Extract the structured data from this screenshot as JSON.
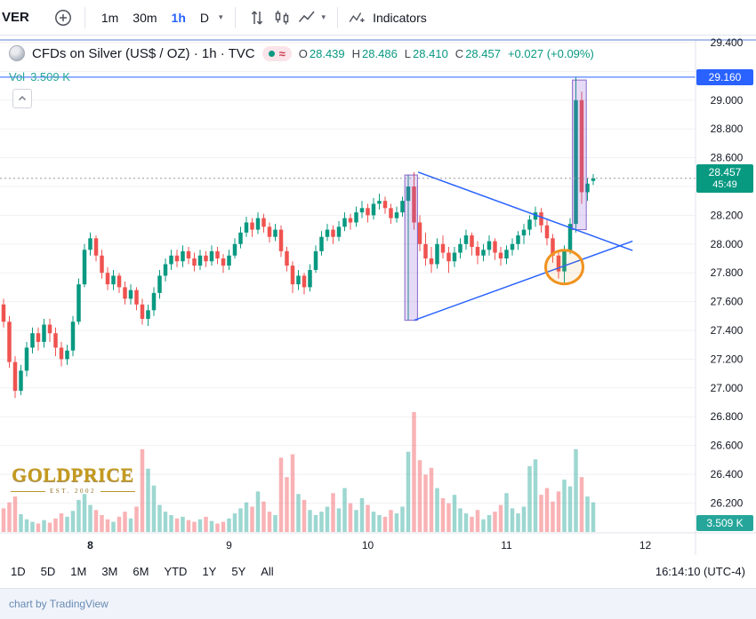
{
  "toolbar": {
    "symbol_short": "VER",
    "intervals": [
      {
        "label": "1m",
        "active": false
      },
      {
        "label": "30m",
        "active": false
      },
      {
        "label": "1h",
        "active": true
      },
      {
        "label": "D",
        "active": false
      }
    ],
    "indicators_label": "Indicators"
  },
  "header": {
    "title": "CFDs on Silver (US$ / OZ) · 1h · TVC",
    "status_approx": "≈",
    "ohlc": {
      "o_label": "O",
      "o": "28.439",
      "h_label": "H",
      "h": "28.486",
      "l_label": "L",
      "l": "28.410",
      "c_label": "C",
      "c": "28.457",
      "change": "+0.027 (+0.09%)"
    },
    "volume_label": "Vol",
    "volume_value": "3.509 K"
  },
  "axis": {
    "price_labels": [
      "29.400",
      "29.000",
      "28.800",
      "28.600",
      "28.200",
      "28.000",
      "27.800",
      "27.600",
      "27.400",
      "27.200",
      "27.000",
      "26.800",
      "26.600",
      "26.400",
      "26.200"
    ],
    "price_line_badge": "29.160",
    "last_price_badge": "28.457",
    "countdown": "45:49",
    "volume_badge": "3.509 K"
  },
  "ranges": [
    "1D",
    "5D",
    "1M",
    "3M",
    "6M",
    "YTD",
    "1Y",
    "5Y",
    "All"
  ],
  "clock": "16:14:10 (UTC-4)",
  "footer_text": "chart by TradingView",
  "watermark": {
    "line1": "GOLDPRICE",
    "line2": "EST. 2002"
  },
  "colors": {
    "accent_blue": "#2962ff",
    "up": "#089981",
    "down": "#ef5350",
    "vol_up": "rgba(38,166,154,0.45)",
    "vol_down": "rgba(242,84,91,0.45)",
    "box_fill": "rgba(142,91,212,0.22)",
    "box_stroke": "rgba(103,58,183,0.75)",
    "triangle": "#2962ff",
    "circle": "#f0931f",
    "grid": "#f0f1f4",
    "axis_text": "#131722",
    "dotted": "#9598a1",
    "top_border": "#5b7fd9",
    "axis_line": "#e0e3eb"
  },
  "chart_data": {
    "type": "candlestick",
    "symbol": "CFDs on Silver (US$ / OZ)",
    "interval": "1h",
    "visible_price_range": [
      26.1,
      29.45
    ],
    "grid_step": 0.2,
    "last_price": 28.457,
    "last_volume_k": 3.509,
    "vol_max_k": 14.2,
    "candles_ohlc": [
      [
        27.58,
        27.62,
        27.42,
        27.46
      ],
      [
        27.46,
        27.5,
        27.14,
        27.18
      ],
      [
        27.18,
        27.22,
        26.93,
        26.98
      ],
      [
        26.98,
        27.16,
        26.95,
        27.12
      ],
      [
        27.12,
        27.32,
        27.08,
        27.28
      ],
      [
        27.28,
        27.42,
        27.24,
        27.38
      ],
      [
        27.38,
        27.42,
        27.26,
        27.32
      ],
      [
        27.32,
        27.48,
        27.28,
        27.44
      ],
      [
        27.44,
        27.48,
        27.32,
        27.38
      ],
      [
        27.38,
        27.42,
        27.22,
        27.28
      ],
      [
        27.28,
        27.32,
        27.15,
        27.2
      ],
      [
        27.2,
        27.3,
        27.16,
        27.26
      ],
      [
        27.26,
        27.5,
        27.22,
        27.46
      ],
      [
        27.46,
        27.76,
        27.44,
        27.72
      ],
      [
        27.72,
        28.0,
        27.7,
        27.96
      ],
      [
        27.96,
        28.08,
        27.92,
        28.04
      ],
      [
        28.04,
        28.06,
        27.88,
        27.92
      ],
      [
        27.92,
        27.96,
        27.76,
        27.8
      ],
      [
        27.8,
        27.84,
        27.68,
        27.72
      ],
      [
        27.72,
        27.82,
        27.68,
        27.78
      ],
      [
        27.78,
        27.8,
        27.66,
        27.7
      ],
      [
        27.7,
        27.74,
        27.58,
        27.62
      ],
      [
        27.62,
        27.72,
        27.58,
        27.68
      ],
      [
        27.68,
        27.7,
        27.54,
        27.58
      ],
      [
        27.58,
        27.62,
        27.44,
        27.48
      ],
      [
        27.48,
        27.58,
        27.43,
        27.54
      ],
      [
        27.54,
        27.7,
        27.5,
        27.66
      ],
      [
        27.66,
        27.82,
        27.62,
        27.78
      ],
      [
        27.78,
        27.9,
        27.74,
        27.86
      ],
      [
        27.86,
        27.96,
        27.82,
        27.92
      ],
      [
        27.92,
        27.96,
        27.84,
        27.88
      ],
      [
        27.88,
        27.99,
        27.84,
        27.95
      ],
      [
        27.95,
        27.98,
        27.86,
        27.9
      ],
      [
        27.9,
        27.94,
        27.81,
        27.85
      ],
      [
        27.85,
        27.96,
        27.82,
        27.92
      ],
      [
        27.92,
        27.95,
        27.84,
        27.88
      ],
      [
        27.88,
        27.99,
        27.85,
        27.95
      ],
      [
        27.95,
        27.98,
        27.86,
        27.9
      ],
      [
        27.9,
        27.93,
        27.8,
        27.85
      ],
      [
        27.85,
        27.96,
        27.82,
        27.92
      ],
      [
        27.92,
        28.04,
        27.9,
        28.0
      ],
      [
        28.0,
        28.12,
        27.97,
        28.08
      ],
      [
        28.08,
        28.19,
        28.05,
        28.15
      ],
      [
        28.15,
        28.18,
        28.05,
        28.1
      ],
      [
        28.1,
        28.22,
        28.07,
        28.18
      ],
      [
        28.18,
        28.21,
        28.08,
        28.12
      ],
      [
        28.12,
        28.15,
        28.01,
        28.05
      ],
      [
        28.05,
        28.14,
        28.02,
        28.1
      ],
      [
        28.1,
        28.13,
        27.91,
        27.95
      ],
      [
        27.95,
        27.98,
        27.81,
        27.85
      ],
      [
        27.85,
        27.88,
        27.66,
        27.72
      ],
      [
        27.72,
        27.82,
        27.68,
        27.78
      ],
      [
        27.78,
        27.8,
        27.65,
        27.7
      ],
      [
        27.7,
        27.86,
        27.67,
        27.82
      ],
      [
        27.82,
        27.99,
        27.8,
        27.95
      ],
      [
        27.95,
        28.09,
        27.92,
        28.05
      ],
      [
        28.05,
        28.14,
        28.02,
        28.1
      ],
      [
        28.1,
        28.13,
        28.0,
        28.05
      ],
      [
        28.05,
        28.16,
        28.02,
        28.12
      ],
      [
        28.12,
        28.22,
        28.09,
        28.18
      ],
      [
        28.18,
        28.21,
        28.1,
        28.15
      ],
      [
        28.15,
        28.26,
        28.12,
        28.22
      ],
      [
        28.22,
        28.3,
        28.18,
        28.25
      ],
      [
        28.25,
        28.28,
        28.15,
        28.2
      ],
      [
        28.2,
        28.32,
        28.17,
        28.28
      ],
      [
        28.28,
        28.35,
        28.24,
        28.3
      ],
      [
        28.3,
        28.33,
        28.21,
        28.25
      ],
      [
        28.25,
        28.28,
        28.14,
        28.18
      ],
      [
        28.18,
        28.26,
        28.15,
        28.22
      ],
      [
        28.22,
        28.33,
        28.19,
        28.3
      ],
      [
        28.3,
        28.48,
        27.47,
        28.4
      ],
      [
        28.4,
        28.5,
        28.1,
        28.15
      ],
      [
        28.15,
        28.2,
        27.95,
        28.0
      ],
      [
        28.0,
        28.08,
        27.85,
        27.9
      ],
      [
        27.9,
        27.98,
        27.8,
        27.86
      ],
      [
        27.86,
        28.04,
        27.83,
        28.0
      ],
      [
        28.0,
        28.06,
        27.9,
        27.94
      ],
      [
        27.94,
        27.98,
        27.8,
        27.88
      ],
      [
        27.88,
        27.98,
        27.84,
        27.94
      ],
      [
        27.94,
        28.04,
        27.9,
        28.0
      ],
      [
        28.0,
        28.1,
        27.96,
        28.06
      ],
      [
        28.06,
        28.08,
        27.92,
        27.98
      ],
      [
        27.98,
        28.02,
        27.86,
        27.92
      ],
      [
        27.92,
        28.0,
        27.88,
        27.96
      ],
      [
        27.96,
        28.06,
        27.92,
        28.02
      ],
      [
        28.02,
        28.04,
        27.89,
        27.94
      ],
      [
        27.94,
        27.98,
        27.85,
        27.9
      ],
      [
        27.9,
        27.99,
        27.86,
        27.96
      ],
      [
        27.96,
        28.04,
        27.92,
        28.0
      ],
      [
        28.0,
        28.09,
        27.96,
        28.06
      ],
      [
        28.06,
        28.14,
        28.0,
        28.1
      ],
      [
        28.1,
        28.2,
        28.06,
        28.17
      ],
      [
        28.17,
        28.26,
        28.12,
        28.22
      ],
      [
        28.22,
        28.25,
        28.08,
        28.13
      ],
      [
        28.13,
        28.17,
        27.99,
        28.04
      ],
      [
        28.04,
        28.07,
        27.87,
        27.92
      ],
      [
        27.92,
        27.95,
        27.76,
        27.81
      ],
      [
        27.81,
        27.99,
        27.73,
        27.95
      ],
      [
        27.95,
        28.18,
        27.93,
        28.14
      ],
      [
        28.14,
        29.16,
        28.08,
        29.0
      ],
      [
        29.0,
        29.06,
        28.28,
        28.36
      ],
      [
        28.36,
        28.46,
        28.3,
        28.42
      ],
      [
        28.439,
        28.486,
        28.41,
        28.457
      ]
    ],
    "volumes_k": [
      2.8,
      3.5,
      4.2,
      2.1,
      1.5,
      1.2,
      1.0,
      1.4,
      1.1,
      1.6,
      2.2,
      1.8,
      2.5,
      3.8,
      4.5,
      3.2,
      2.6,
      2.0,
      1.5,
      1.2,
      1.8,
      2.4,
      1.6,
      3.0,
      9.8,
      7.5,
      5.5,
      3.2,
      2.4,
      2.0,
      1.6,
      1.8,
      1.4,
      1.2,
      1.5,
      1.8,
      1.3,
      1.0,
      1.2,
      1.6,
      2.2,
      2.8,
      3.5,
      3.0,
      4.8,
      3.6,
      2.4,
      2.0,
      8.8,
      6.5,
      9.2,
      4.5,
      3.8,
      2.6,
      2.0,
      2.4,
      3.0,
      4.6,
      2.8,
      5.2,
      3.4,
      2.6,
      4.0,
      3.2,
      2.4,
      2.0,
      1.8,
      2.6,
      2.2,
      3.0,
      9.5,
      14.2,
      8.5,
      6.8,
      7.6,
      5.2,
      4.0,
      3.4,
      4.4,
      2.8,
      2.2,
      1.8,
      2.6,
      1.5,
      2.0,
      2.4,
      3.2,
      4.6,
      2.8,
      2.2,
      3.0,
      7.8,
      8.6,
      4.4,
      5.2,
      3.6,
      4.8,
      6.2,
      5.4,
      9.8,
      6.5,
      4.2,
      3.509
    ],
    "day_ticks": [
      {
        "i": 15,
        "label": "8",
        "bold": true
      },
      {
        "i": 39,
        "label": "9",
        "bold": false
      },
      {
        "i": 63,
        "label": "10",
        "bold": false
      },
      {
        "i": 87,
        "label": "11",
        "bold": false
      },
      {
        "i": 111,
        "label": "12",
        "bold": false
      }
    ],
    "annotations": {
      "horizontal_line_price": 29.16,
      "boxes": [
        {
          "i1": 69.4,
          "i2": 71.6,
          "p1": 27.47,
          "p2": 28.48
        },
        {
          "i1": 98.4,
          "i2": 100.8,
          "p1": 28.1,
          "p2": 29.14
        }
      ],
      "triangle_upper": [
        [
          71.7,
          28.5
        ],
        [
          108.8,
          27.955
        ]
      ],
      "triangle_lower": [
        [
          71.0,
          27.47
        ],
        [
          108.8,
          28.02
        ]
      ],
      "circle": {
        "i": 97,
        "price": 27.84
      }
    }
  }
}
